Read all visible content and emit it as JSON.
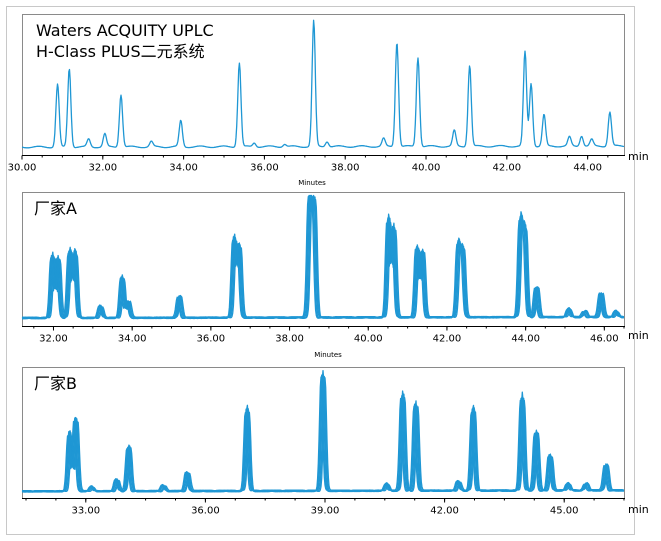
{
  "colors": {
    "trace": "#1f97d4",
    "frame": "#8a8a8a"
  },
  "chart_data": [
    {
      "type": "line",
      "title_lines": [
        "Waters ACQUITY UPLC",
        "H-Class PLUS二元系统"
      ],
      "xlabel": "Minutes",
      "x_unit": "min",
      "xlim": [
        30.0,
        44.9
      ],
      "xticks": [
        "30.00",
        "32.00",
        "34.00",
        "36.00",
        "38.00",
        "40.00",
        "42.00",
        "44.00"
      ],
      "replicates": 1,
      "baseline": 0.03,
      "peaks": [
        [
          30.88,
          0.48
        ],
        [
          31.17,
          0.6
        ],
        [
          31.65,
          0.06
        ],
        [
          32.05,
          0.1
        ],
        [
          32.45,
          0.4
        ],
        [
          33.2,
          0.04
        ],
        [
          33.93,
          0.2
        ],
        [
          35.38,
          0.64
        ],
        [
          35.75,
          0.03
        ],
        [
          36.5,
          0.02
        ],
        [
          37.22,
          0.96
        ],
        [
          37.55,
          0.04
        ],
        [
          38.95,
          0.06
        ],
        [
          39.28,
          0.8
        ],
        [
          39.8,
          0.68
        ],
        [
          40.7,
          0.12
        ],
        [
          41.08,
          0.62
        ],
        [
          42.45,
          0.72
        ],
        [
          42.6,
          0.48
        ],
        [
          42.92,
          0.24
        ],
        [
          43.55,
          0.07
        ],
        [
          43.85,
          0.08
        ],
        [
          44.1,
          0.05
        ],
        [
          44.55,
          0.26
        ]
      ]
    },
    {
      "type": "line",
      "title_lines": [
        "厂家A"
      ],
      "xlabel": "Minutes",
      "x_unit": "min",
      "xlim": [
        31.2,
        46.5
      ],
      "xticks": [
        "32.00",
        "34.00",
        "36.00",
        "38.00",
        "40.00",
        "42.00",
        "44.00",
        "46.00"
      ],
      "replicates": 5,
      "baseline": 0.04,
      "peaks": [
        [
          31.98,
          0.52
        ],
        [
          32.12,
          0.5
        ],
        [
          32.42,
          0.56
        ],
        [
          32.55,
          0.55
        ],
        [
          33.2,
          0.1
        ],
        [
          33.75,
          0.34
        ],
        [
          33.9,
          0.14
        ],
        [
          35.2,
          0.18
        ],
        [
          36.6,
          0.66
        ],
        [
          36.72,
          0.6
        ],
        [
          38.52,
          0.98
        ],
        [
          38.62,
          0.95
        ],
        [
          40.52,
          0.82
        ],
        [
          40.65,
          0.75
        ],
        [
          41.25,
          0.58
        ],
        [
          41.38,
          0.55
        ],
        [
          42.3,
          0.6
        ],
        [
          42.4,
          0.56
        ],
        [
          43.88,
          0.8
        ],
        [
          43.98,
          0.72
        ],
        [
          44.28,
          0.25
        ],
        [
          45.1,
          0.07
        ],
        [
          45.5,
          0.05
        ],
        [
          45.92,
          0.2
        ],
        [
          46.3,
          0.05
        ]
      ]
    },
    {
      "type": "line",
      "title_lines": [
        "厂家B"
      ],
      "xlabel": "",
      "x_unit": "min",
      "xlim": [
        31.4,
        46.5
      ],
      "xticks": [
        "33.00",
        "36.00",
        "39.00",
        "42.00",
        "45.00"
      ],
      "replicates": 5,
      "baseline": 0.03,
      "peaks": [
        [
          32.6,
          0.5
        ],
        [
          32.75,
          0.62
        ],
        [
          33.15,
          0.04
        ],
        [
          33.78,
          0.1
        ],
        [
          34.08,
          0.38
        ],
        [
          34.95,
          0.05
        ],
        [
          35.55,
          0.16
        ],
        [
          37.05,
          0.7
        ],
        [
          38.95,
          1.0
        ],
        [
          40.55,
          0.06
        ],
        [
          40.95,
          0.82
        ],
        [
          41.28,
          0.74
        ],
        [
          42.35,
          0.08
        ],
        [
          42.72,
          0.7
        ],
        [
          43.95,
          0.8
        ],
        [
          44.3,
          0.5
        ],
        [
          44.65,
          0.3
        ],
        [
          45.1,
          0.06
        ],
        [
          45.55,
          0.06
        ],
        [
          46.05,
          0.22
        ]
      ]
    }
  ]
}
